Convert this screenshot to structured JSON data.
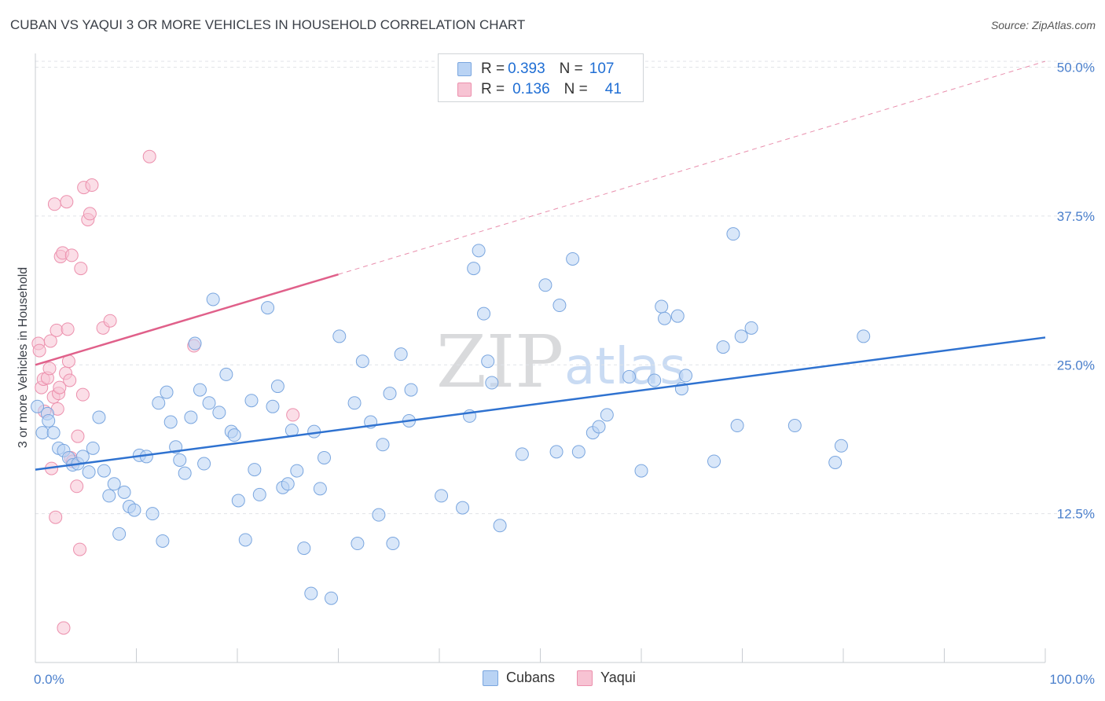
{
  "title": "CUBAN VS YAQUI 3 OR MORE VEHICLES IN HOUSEHOLD CORRELATION CHART",
  "source": "Source: ZipAtlas.com",
  "watermark": {
    "zip": "ZIP",
    "atlas": "atlas"
  },
  "legend_top": {
    "rows": [
      {
        "r_label": "R =",
        "r_value": "0.393",
        "n_label": "N =",
        "n_value": "107"
      },
      {
        "r_label": "R =",
        "r_value": "0.136",
        "n_label": "N =",
        "n_value": "41"
      }
    ]
  },
  "legend_bottom": {
    "items": [
      {
        "label": "Cubans"
      },
      {
        "label": "Yaqui"
      }
    ]
  },
  "colors": {
    "blue_fill": "#b9d3f4",
    "blue_stroke": "#7aa6df",
    "blue_line": "#2f72d0",
    "pink_fill": "#f7c3d3",
    "pink_stroke": "#ec90ad",
    "pink_line": "#e0608a",
    "axis_text": "#4a7fcc",
    "grid": "#e0e3e8",
    "text": "#333333"
  },
  "chart_data": {
    "type": "scatter",
    "title": "CUBAN VS YAQUI 3 OR MORE VEHICLES IN HOUSEHOLD CORRELATION CHART",
    "xlabel": "",
    "ylabel": "3 or more Vehicles in Household",
    "xlim": [
      0,
      100
    ],
    "ylim": [
      0,
      50.5
    ],
    "x_tick_labels": [
      "0.0%",
      "100.0%"
    ],
    "y_ticks": [
      12.5,
      25.0,
      37.5,
      50.0
    ],
    "y_tick_labels": [
      "12.5%",
      "25.0%",
      "37.5%",
      "50.0%"
    ],
    "series": [
      {
        "name": "Cubans",
        "r": 0.393,
        "n": 107,
        "trend": {
          "x": [
            0,
            100
          ],
          "y": [
            16.2,
            27.3
          ],
          "dashed_extension": false
        },
        "points": [
          [
            0.2,
            21.5
          ],
          [
            0.7,
            19.3
          ],
          [
            1.2,
            20.9
          ],
          [
            1.3,
            20.3
          ],
          [
            1.8,
            19.3
          ],
          [
            2.3,
            18
          ],
          [
            2.8,
            17.8
          ],
          [
            3.3,
            17.2
          ],
          [
            3.7,
            16.6
          ],
          [
            4.2,
            16.7
          ],
          [
            4.7,
            17.3
          ],
          [
            5.3,
            16
          ],
          [
            5.7,
            18
          ],
          [
            6.3,
            20.6
          ],
          [
            6.8,
            16.1
          ],
          [
            7.3,
            14
          ],
          [
            7.8,
            15
          ],
          [
            8.3,
            10.8
          ],
          [
            8.8,
            14.3
          ],
          [
            9.3,
            13.1
          ],
          [
            9.8,
            12.8
          ],
          [
            10.3,
            17.4
          ],
          [
            11,
            17.3
          ],
          [
            11.6,
            12.5
          ],
          [
            12.2,
            21.8
          ],
          [
            12.6,
            10.2
          ],
          [
            13,
            22.7
          ],
          [
            13.4,
            20.2
          ],
          [
            13.9,
            18.1
          ],
          [
            14.3,
            17
          ],
          [
            14.8,
            15.9
          ],
          [
            15.4,
            20.6
          ],
          [
            15.8,
            26.8
          ],
          [
            16.3,
            22.9
          ],
          [
            16.7,
            16.7
          ],
          [
            17.2,
            21.8
          ],
          [
            17.6,
            30.5
          ],
          [
            18.2,
            21
          ],
          [
            18.9,
            24.2
          ],
          [
            19.4,
            19.4
          ],
          [
            19.7,
            19.1
          ],
          [
            20.1,
            13.6
          ],
          [
            20.8,
            10.3
          ],
          [
            21.4,
            22
          ],
          [
            21.7,
            16.2
          ],
          [
            22.2,
            14.1
          ],
          [
            23,
            29.8
          ],
          [
            23.5,
            21.5
          ],
          [
            24,
            23.2
          ],
          [
            24.5,
            14.7
          ],
          [
            25,
            15
          ],
          [
            25.4,
            19.5
          ],
          [
            25.9,
            16.1
          ],
          [
            26.6,
            9.6
          ],
          [
            27.3,
            5.8
          ],
          [
            27.6,
            19.4
          ],
          [
            28.2,
            14.6
          ],
          [
            28.6,
            17.2
          ],
          [
            29.3,
            5.4
          ],
          [
            30.1,
            27.4
          ],
          [
            31.6,
            21.8
          ],
          [
            31.9,
            10
          ],
          [
            32.4,
            25.3
          ],
          [
            33.2,
            20.2
          ],
          [
            34,
            12.4
          ],
          [
            34.4,
            18.3
          ],
          [
            35.1,
            22.6
          ],
          [
            35.4,
            10
          ],
          [
            36.2,
            25.9
          ],
          [
            37,
            20.3
          ],
          [
            37.2,
            22.9
          ],
          [
            40.2,
            14
          ],
          [
            42.3,
            13
          ],
          [
            43,
            20.7
          ],
          [
            43.4,
            33.1
          ],
          [
            43.9,
            34.6
          ],
          [
            44.4,
            29.3
          ],
          [
            44.8,
            25.3
          ],
          [
            45.2,
            23.5
          ],
          [
            46,
            11.5
          ],
          [
            48.2,
            17.5
          ],
          [
            50.5,
            31.7
          ],
          [
            51.6,
            17.7
          ],
          [
            51.9,
            30
          ],
          [
            53.2,
            33.9
          ],
          [
            53.8,
            17.7
          ],
          [
            55.2,
            19.3
          ],
          [
            55.8,
            19.8
          ],
          [
            56.6,
            20.8
          ],
          [
            58.8,
            24
          ],
          [
            60,
            16.1
          ],
          [
            61.3,
            23.7
          ],
          [
            62,
            29.9
          ],
          [
            62.3,
            28.9
          ],
          [
            63.6,
            29.1
          ],
          [
            64,
            23
          ],
          [
            64.4,
            24.1
          ],
          [
            67.2,
            16.9
          ],
          [
            68.1,
            26.5
          ],
          [
            69.1,
            36
          ],
          [
            69.5,
            19.9
          ],
          [
            69.9,
            27.4
          ],
          [
            70.9,
            28.1
          ],
          [
            75.2,
            19.9
          ],
          [
            79.2,
            16.8
          ],
          [
            79.8,
            18.2
          ],
          [
            82,
            27.4
          ]
        ]
      },
      {
        "name": "Yaqui",
        "r": 0.136,
        "n": 41,
        "trend": {
          "x": [
            0,
            30
          ],
          "y": [
            25.0,
            32.6
          ],
          "dashed_extension": true,
          "dashed_to": {
            "x": 100,
            "y": 50.5
          }
        },
        "points": [
          [
            0.3,
            26.8
          ],
          [
            0.4,
            26.2
          ],
          [
            0.6,
            23.1
          ],
          [
            0.8,
            23.8
          ],
          [
            0.9,
            21.1
          ],
          [
            1.2,
            23.9
          ],
          [
            1.4,
            24.7
          ],
          [
            1.5,
            27
          ],
          [
            1.6,
            16.3
          ],
          [
            1.8,
            22.3
          ],
          [
            1.9,
            38.5
          ],
          [
            2,
            12.2
          ],
          [
            2.1,
            27.9
          ],
          [
            2.2,
            21.3
          ],
          [
            2.3,
            22.6
          ],
          [
            2.4,
            23.1
          ],
          [
            2.5,
            34.1
          ],
          [
            2.7,
            34.4
          ],
          [
            2.8,
            2.9
          ],
          [
            3,
            24.3
          ],
          [
            3.1,
            38.7
          ],
          [
            3.2,
            28
          ],
          [
            3.3,
            25.3
          ],
          [
            3.4,
            23.7
          ],
          [
            3.5,
            17.2
          ],
          [
            3.6,
            34.2
          ],
          [
            3.7,
            16.9
          ],
          [
            4.1,
            14.8
          ],
          [
            4.2,
            19
          ],
          [
            4.4,
            9.5
          ],
          [
            4.5,
            33.1
          ],
          [
            4.7,
            22.5
          ],
          [
            4.8,
            39.9
          ],
          [
            5.2,
            37.2
          ],
          [
            5.4,
            37.7
          ],
          [
            5.6,
            40.1
          ],
          [
            6.7,
            28.1
          ],
          [
            7.4,
            28.7
          ],
          [
            11.3,
            42.5
          ],
          [
            15.7,
            26.6
          ],
          [
            25.5,
            20.8
          ]
        ]
      }
    ]
  }
}
